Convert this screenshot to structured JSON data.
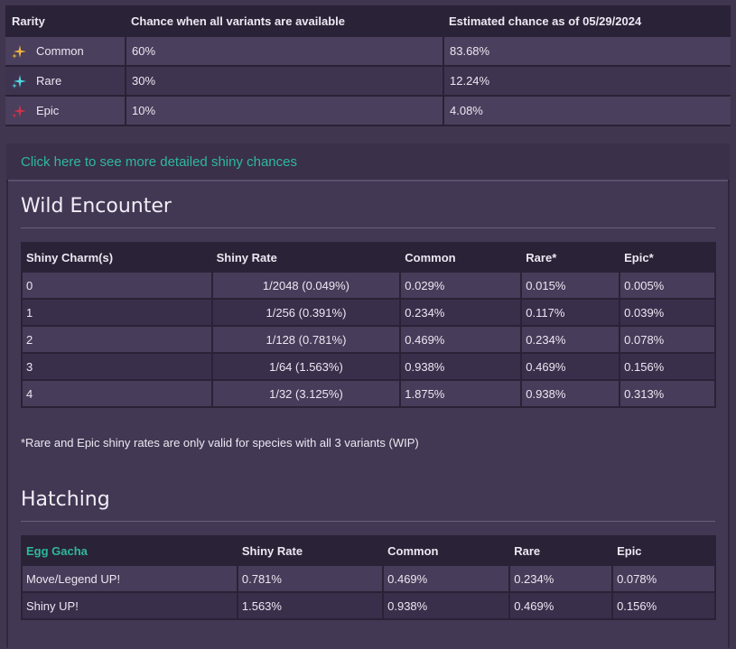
{
  "rarity_table": {
    "headers": [
      "Rarity",
      "Chance when all variants are available",
      "Estimated chance as of 05/29/2024"
    ],
    "rows": [
      {
        "icon": "yellow-sparkle-icon",
        "color": "#f0b43c",
        "name": "Common",
        "chance": "60%",
        "estimated": "83.68%"
      },
      {
        "icon": "cyan-sparkle-icon",
        "color": "#4fd9e0",
        "name": "Rare",
        "chance": "30%",
        "estimated": "12.24%"
      },
      {
        "icon": "red-sparkle-icon",
        "color": "#d0324a",
        "name": "Epic",
        "chance": "10%",
        "estimated": "4.08%"
      }
    ]
  },
  "details_link": "Click here to see more detailed shiny chances",
  "wild": {
    "title": "Wild Encounter",
    "headers": [
      "Shiny Charm(s)",
      "Shiny Rate",
      "Common",
      "Rare*",
      "Epic*"
    ],
    "rows": [
      [
        "0",
        "1/2048 (0.049%)",
        "0.029%",
        "0.015%",
        "0.005%"
      ],
      [
        "1",
        "1/256 (0.391%)",
        "0.234%",
        "0.117%",
        "0.039%"
      ],
      [
        "2",
        "1/128 (0.781%)",
        "0.469%",
        "0.234%",
        "0.078%"
      ],
      [
        "3",
        "1/64 (1.563%)",
        "0.938%",
        "0.469%",
        "0.156%"
      ],
      [
        "4",
        "1/32 (3.125%)",
        "1.875%",
        "0.938%",
        "0.313%"
      ]
    ],
    "note": "*Rare and Epic shiny rates are only valid for species with all 3 variants (WIP)"
  },
  "hatching": {
    "title": "Hatching",
    "headers": [
      "Egg Gacha",
      "Shiny Rate",
      "Common",
      "Rare",
      "Epic"
    ],
    "rows": [
      [
        "Move/Legend UP!",
        "0.781%",
        "0.469%",
        "0.234%",
        "0.078%"
      ],
      [
        "Shiny UP!",
        "1.563%",
        "0.938%",
        "0.469%",
        "0.156%"
      ]
    ]
  },
  "colors": {
    "link": "#2fb89d",
    "background": "#403650"
  }
}
